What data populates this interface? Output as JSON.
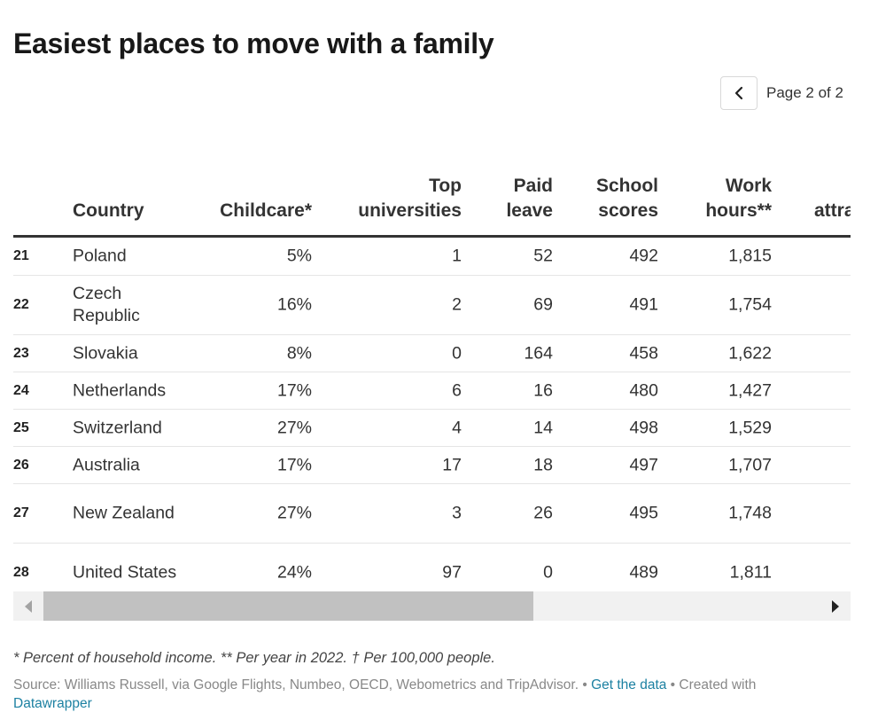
{
  "title": "Easiest places to move with a family",
  "pager": {
    "label": "Page 2 of 2",
    "prev_icon": "chevron-left-icon"
  },
  "table": {
    "columns": [
      {
        "label": ""
      },
      {
        "label": "Country"
      },
      {
        "label": "Childcare*"
      },
      {
        "label": "Top\nuniversities"
      },
      {
        "label": "Paid\nleave"
      },
      {
        "label": "School\nscores"
      },
      {
        "label": "Work\nhours**"
      },
      {
        "label": "attra"
      }
    ],
    "rows": [
      {
        "rank": "21",
        "country": "Poland",
        "childcare": "5%",
        "universities": "1",
        "leave": "52",
        "school": "492",
        "hours": "1,815"
      },
      {
        "rank": "22",
        "country": "Czech Republic",
        "childcare": "16%",
        "universities": "2",
        "leave": "69",
        "school": "491",
        "hours": "1,754"
      },
      {
        "rank": "23",
        "country": "Slovakia",
        "childcare": "8%",
        "universities": "0",
        "leave": "164",
        "school": "458",
        "hours": "1,622"
      },
      {
        "rank": "24",
        "country": "Netherlands",
        "childcare": "17%",
        "universities": "6",
        "leave": "16",
        "school": "480",
        "hours": "1,427"
      },
      {
        "rank": "25",
        "country": "Switzerland",
        "childcare": "27%",
        "universities": "4",
        "leave": "14",
        "school": "498",
        "hours": "1,529"
      },
      {
        "rank": "26",
        "country": "Australia",
        "childcare": "17%",
        "universities": "17",
        "leave": "18",
        "school": "497",
        "hours": "1,707"
      },
      {
        "rank": "27",
        "country": "New Zealand",
        "childcare": "27%",
        "universities": "3",
        "leave": "26",
        "school": "495",
        "hours": "1,748"
      },
      {
        "rank": "28",
        "country": "United States",
        "childcare": "24%",
        "universities": "97",
        "leave": "0",
        "school": "489",
        "hours": "1,811"
      }
    ]
  },
  "footer": {
    "note": "* Percent of household income. ** Per year in 2022. † Per 100,000 people.",
    "source_text": "Source: Williams Russell, via Google Flights, Numbeo, OECD, Webometrics and TripAdvisor. • ",
    "get_data_link": "Get the data",
    "created_with": " • Created with ",
    "datawrapper_link": "Datawrapper"
  }
}
